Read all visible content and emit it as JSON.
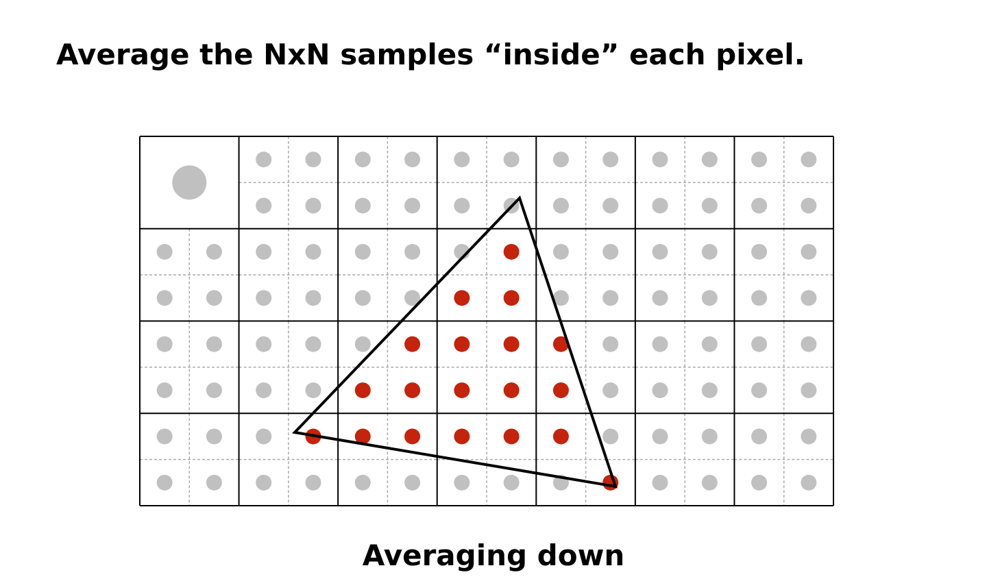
{
  "header": {
    "title": "Average the NxN samples “inside” each pixel."
  },
  "caption": "Averaging down"
}
